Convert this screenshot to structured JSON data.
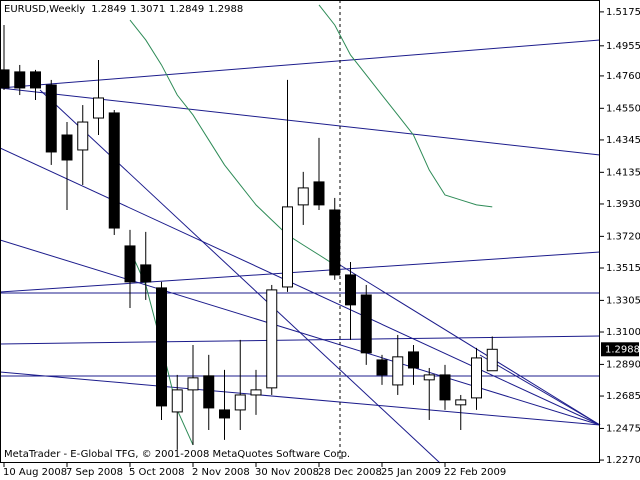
{
  "chart_data": {
    "type": "candlestick",
    "title": "EURUSD,Weekly",
    "categories": [
      "10 Aug 2008",
      null,
      null,
      null,
      "7 Sep 2008",
      null,
      null,
      null,
      "5 Oct 2008",
      null,
      null,
      null,
      "2 Nov 2008",
      null,
      null,
      null,
      "30 Nov 2008",
      null,
      null,
      null,
      "28 Dec 2008",
      null,
      null,
      null,
      "25 Jan 2009",
      null,
      null,
      null,
      "22 Feb 2009",
      null,
      null,
      null
    ],
    "open": [
      1.4799,
      1.4786,
      1.4786,
      1.4701,
      1.4377,
      1.428,
      1.4487,
      1.452,
      1.3658,
      1.3535,
      1.3386,
      1.2582,
      1.2725,
      1.2816,
      1.2595,
      1.2595,
      1.2692,
      1.2738,
      1.3392,
      1.3924,
      1.4073,
      1.3891,
      1.347,
      1.334,
      1.2919,
      1.2757,
      1.2971,
      1.279,
      1.2822,
      1.2628,
      1.2673,
      1.2849
    ],
    "high": [
      1.509,
      1.4831,
      1.4799,
      1.4734,
      1.4461,
      1.4571,
      1.4863,
      1.4539,
      1.3762,
      1.3749,
      1.3425,
      1.2822,
      1.3016,
      1.2952,
      1.2855,
      1.3049,
      1.2855,
      1.3405,
      1.4734,
      1.4138,
      1.4358,
      1.3969,
      1.3554,
      1.3405,
      1.2952,
      1.3081,
      1.3016,
      1.2867,
      1.2887,
      1.2692,
      1.2997,
      1.3071
    ],
    "low": [
      1.4669,
      1.4636,
      1.4604,
      1.4183,
      1.3891,
      1.4053,
      1.4377,
      1.3729,
      1.3256,
      1.3308,
      1.253,
      1.2336,
      1.2368,
      1.2465,
      1.2401,
      1.2465,
      1.2563,
      1.2692,
      1.336,
      1.3794,
      1.3891,
      1.3438,
      1.3049,
      1.2887,
      1.2757,
      1.2692,
      1.2757,
      1.253,
      1.2595,
      1.2465,
      1.2595,
      1.2849
    ],
    "close": [
      1.4682,
      1.4682,
      1.4682,
      1.4267,
      1.4215,
      1.4461,
      1.4617,
      1.3774,
      1.3425,
      1.3425,
      1.2621,
      1.2725,
      1.2803,
      1.2608,
      1.2543,
      1.2692,
      1.2725,
      1.3373,
      1.3911,
      1.4034,
      1.3924,
      1.347,
      1.3276,
      1.2965,
      1.2822,
      1.2939,
      1.2867,
      1.2822,
      1.266,
      1.266,
      1.2932,
      1.2988
    ],
    "lines": [
      {
        "color": "#2e8b57",
        "values": [
          null,
          null,
          null,
          null,
          null,
          null,
          null,
          null,
          1.5122,
          1.4993,
          1.4831,
          1.4636,
          1.4507,
          1.4345,
          1.4183,
          1.4053,
          1.3924,
          1.3826,
          1.3729,
          1.3664,
          1.36,
          1.3535,
          null,
          null,
          null,
          null,
          null,
          null,
          null,
          null,
          null,
          null
        ]
      },
      {
        "color": "#2e8b57",
        "values": [
          null,
          null,
          null,
          null,
          null,
          null,
          null,
          null,
          null,
          null,
          null,
          null,
          null,
          null,
          null,
          null,
          null,
          null,
          null,
          null,
          1.522,
          1.509,
          1.4896,
          1.4766,
          1.4636,
          1.4507,
          1.4377,
          1.415,
          1.3988,
          1.3956,
          1.3924,
          1.3911
        ]
      },
      {
        "color": "#2e8b57",
        "values": [
          null,
          null,
          null,
          null,
          null,
          null,
          null,
          null,
          1.3632,
          1.3405,
          1.3016,
          1.2595,
          1.2368,
          null,
          null,
          null,
          null,
          null,
          null,
          null,
          null,
          null,
          null,
          null,
          null,
          null,
          null,
          null,
          null,
          null,
          null,
          null
        ]
      }
    ],
    "up_color": "#ffffff",
    "down_color": "#000000",
    "ylim": [
      1.2251,
      1.5252
    ],
    "yticks": [
      1.5175,
      1.4955,
      {
        "value": 1.476,
        "label": "1.4760"
      },
      {
        "value": 1.455,
        "label": "1.4550"
      },
      1.4345,
      1.4135,
      {
        "value": 1.393,
        "label": "1.3930"
      },
      {
        "value": 1.372,
        "label": "1.3720"
      },
      1.3515,
      1.3305,
      {
        "value": 1.31,
        "label": "1.3100"
      },
      {
        "value": 1.289,
        "label": "1.2890"
      },
      1.2685,
      1.2475,
      {
        "value": 1.227,
        "label": "1.2270"
      }
    ],
    "footer": "MetaTrader - E-Global TFG, © 2001-2008 MetaQuotes Software Corp."
  }
}
